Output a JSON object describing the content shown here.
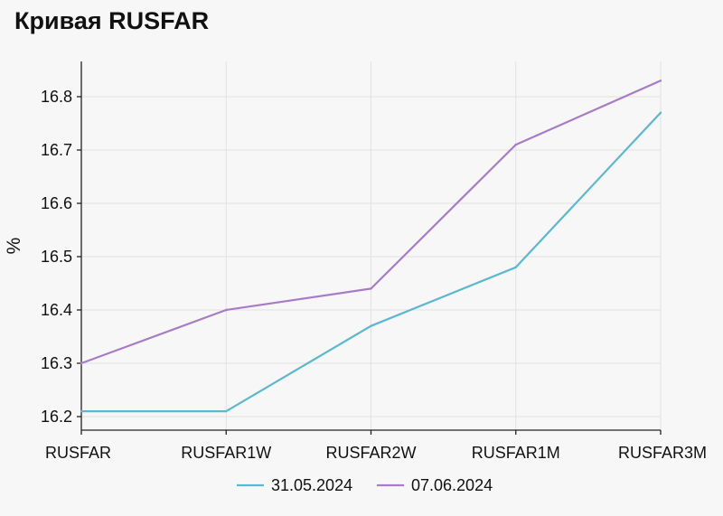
{
  "chart_data": {
    "type": "line",
    "title": "Кривая RUSFAR",
    "xlabel": "",
    "ylabel": "%",
    "categories": [
      "RUSFAR",
      "RUSFAR1W",
      "RUSFAR2W",
      "RUSFAR1M",
      "RUSFAR3M"
    ],
    "ylim": [
      16.18,
      16.86
    ],
    "yticks": [
      16.2,
      16.3,
      16.4,
      16.5,
      16.6,
      16.7,
      16.8
    ],
    "grid": true,
    "legend_position": "bottom",
    "series": [
      {
        "name": "31.05.2024",
        "color": "#5ab8cf",
        "values": [
          16.21,
          16.21,
          16.37,
          16.48,
          16.77
        ]
      },
      {
        "name": "07.06.2024",
        "color": "#a77bc8",
        "values": [
          16.3,
          16.4,
          16.44,
          16.71,
          16.83
        ]
      }
    ]
  }
}
